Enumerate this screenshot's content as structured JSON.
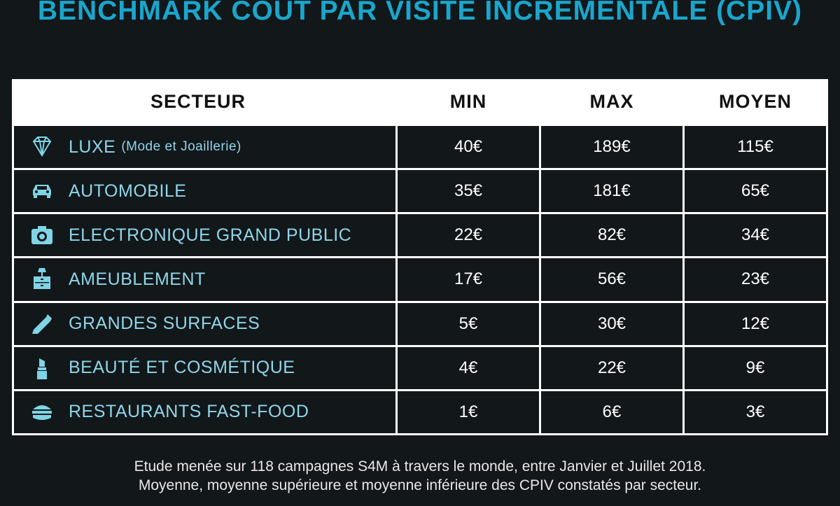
{
  "title": "BENCHMARK COUT PAR VISITE INCRÉMENTALE (CPIV)",
  "table": {
    "header": [
      "SECTEUR",
      "MIN",
      "MAX",
      "MOYEN"
    ],
    "rows": [
      {
        "sector": "LUXE",
        "note": "(Mode et Joaillerie)",
        "min": "40€",
        "max": "189€",
        "moyen": "115€"
      },
      {
        "sector": "AUTOMOBILE",
        "min": "35€",
        "max": "181€",
        "moyen": "65€"
      },
      {
        "sector": "ELECTRONIQUE GRAND PUBLIC",
        "min": "22€",
        "max": "82€",
        "moyen": "34€"
      },
      {
        "sector": "AMEUBLEMENT",
        "min": "17€",
        "max": "56€",
        "moyen": "23€"
      },
      {
        "sector": "GRANDES SURFACES",
        "min": "5€",
        "max": "30€",
        "moyen": "12€"
      },
      {
        "sector": "BEAUTÉ ET COSMÉTIQUE",
        "min": "4€",
        "max": "22€",
        "moyen": "9€"
      },
      {
        "sector": "RESTAURANTS FAST-FOOD",
        "min": "1€",
        "max": "6€",
        "moyen": "3€"
      }
    ]
  },
  "footnote": [
    "Etude menée sur 118 campagnes S4M à travers le monde, entre Janvier et Juillet 2018.",
    "Moyenne, moyenne supérieure et moyenne inférieure des CPIV constatés par secteur."
  ]
}
